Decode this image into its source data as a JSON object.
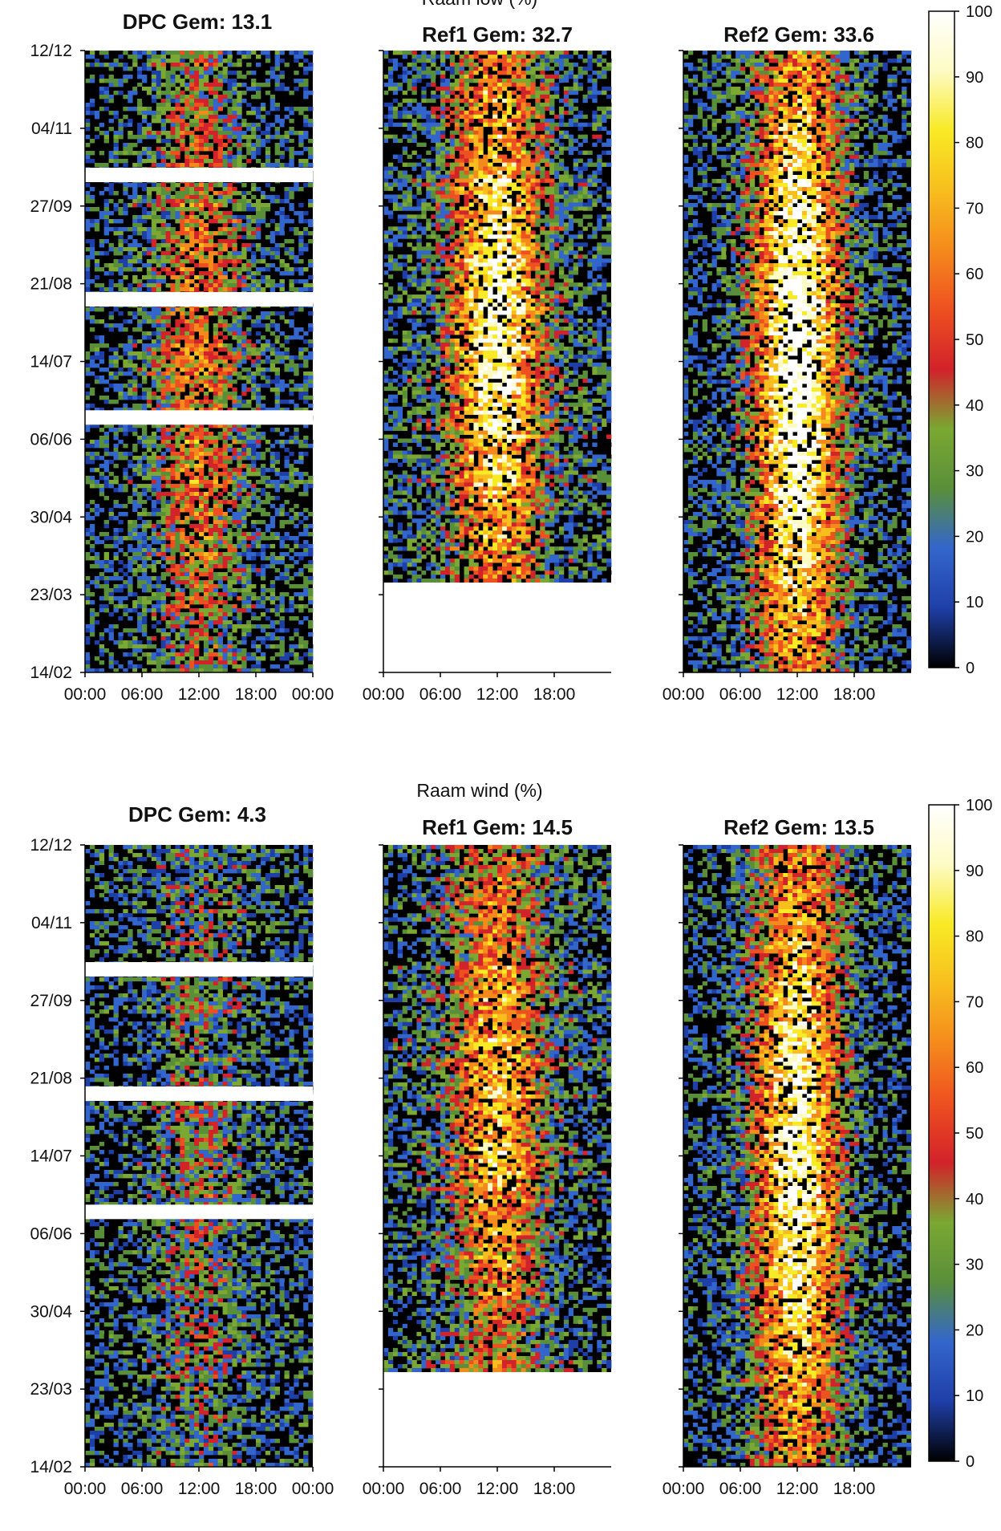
{
  "figures": [
    {
      "section_title": "Raam low (%)",
      "panels": [
        {
          "title": "DPC Gem: 13.1",
          "mean": 13.1
        },
        {
          "title": "Ref1 Gem: 32.7",
          "mean": 32.7
        },
        {
          "title": "Ref2 Gem: 33.6",
          "mean": 33.6
        }
      ]
    },
    {
      "section_title": "Raam wind (%)",
      "panels": [
        {
          "title": "DPC Gem: 4.3",
          "mean": 4.3
        },
        {
          "title": "Ref1 Gem: 14.5",
          "mean": 14.5
        },
        {
          "title": "Ref2 Gem: 13.5",
          "mean": 13.5
        }
      ]
    }
  ],
  "y_ticks": [
    "12/12",
    "04/11",
    "27/09",
    "21/08",
    "14/07",
    "06/06",
    "30/04",
    "23/03",
    "14/02"
  ],
  "x_ticks_dpc": [
    "00:00",
    "06:00",
    "12:00",
    "18:00",
    "00:00"
  ],
  "x_ticks_ref": [
    "00:00",
    "06:00",
    "12:00",
    "18:00"
  ],
  "colorbar": {
    "ticks": [
      "100",
      "90",
      "80",
      "70",
      "60",
      "50",
      "40",
      "30",
      "20",
      "10",
      "0"
    ],
    "range": [
      0,
      100
    ],
    "colors": [
      "#000000",
      "#1f3fa8",
      "#3366cc",
      "#5a8f3a",
      "#7aa832",
      "#d2222a",
      "#ee5020",
      "#f58a1c",
      "#f7be1e",
      "#f8ea24",
      "#fdfbc4",
      "#ffffff"
    ]
  },
  "chart_data": [
    {
      "type": "heatmap",
      "title": "Raam low (%)",
      "subplots": [
        "DPC Gem: 13.1",
        "Ref1 Gem: 32.7",
        "Ref2 Gem: 33.6"
      ],
      "x_ticks": [
        "00:00",
        "06:00",
        "12:00",
        "18:00",
        "00:00"
      ],
      "y_ticks": [
        "12/12",
        "04/11",
        "27/09",
        "21/08",
        "14/07",
        "06/06",
        "30/04",
        "23/03",
        "14/02"
      ],
      "colorbar_range": [
        0,
        100
      ],
      "means": [
        13.1,
        32.7,
        33.6
      ]
    },
    {
      "type": "heatmap",
      "title": "Raam wind (%)",
      "subplots": [
        "DPC Gem: 4.3",
        "Ref1 Gem: 14.5",
        "Ref2 Gem: 13.5"
      ],
      "x_ticks": [
        "00:00",
        "06:00",
        "12:00",
        "18:00",
        "00:00"
      ],
      "y_ticks": [
        "12/12",
        "04/11",
        "27/09",
        "21/08",
        "14/07",
        "06/06",
        "30/04",
        "23/03",
        "14/02"
      ],
      "colorbar_range": [
        0,
        100
      ],
      "means": [
        4.3,
        14.5,
        13.5
      ]
    }
  ]
}
